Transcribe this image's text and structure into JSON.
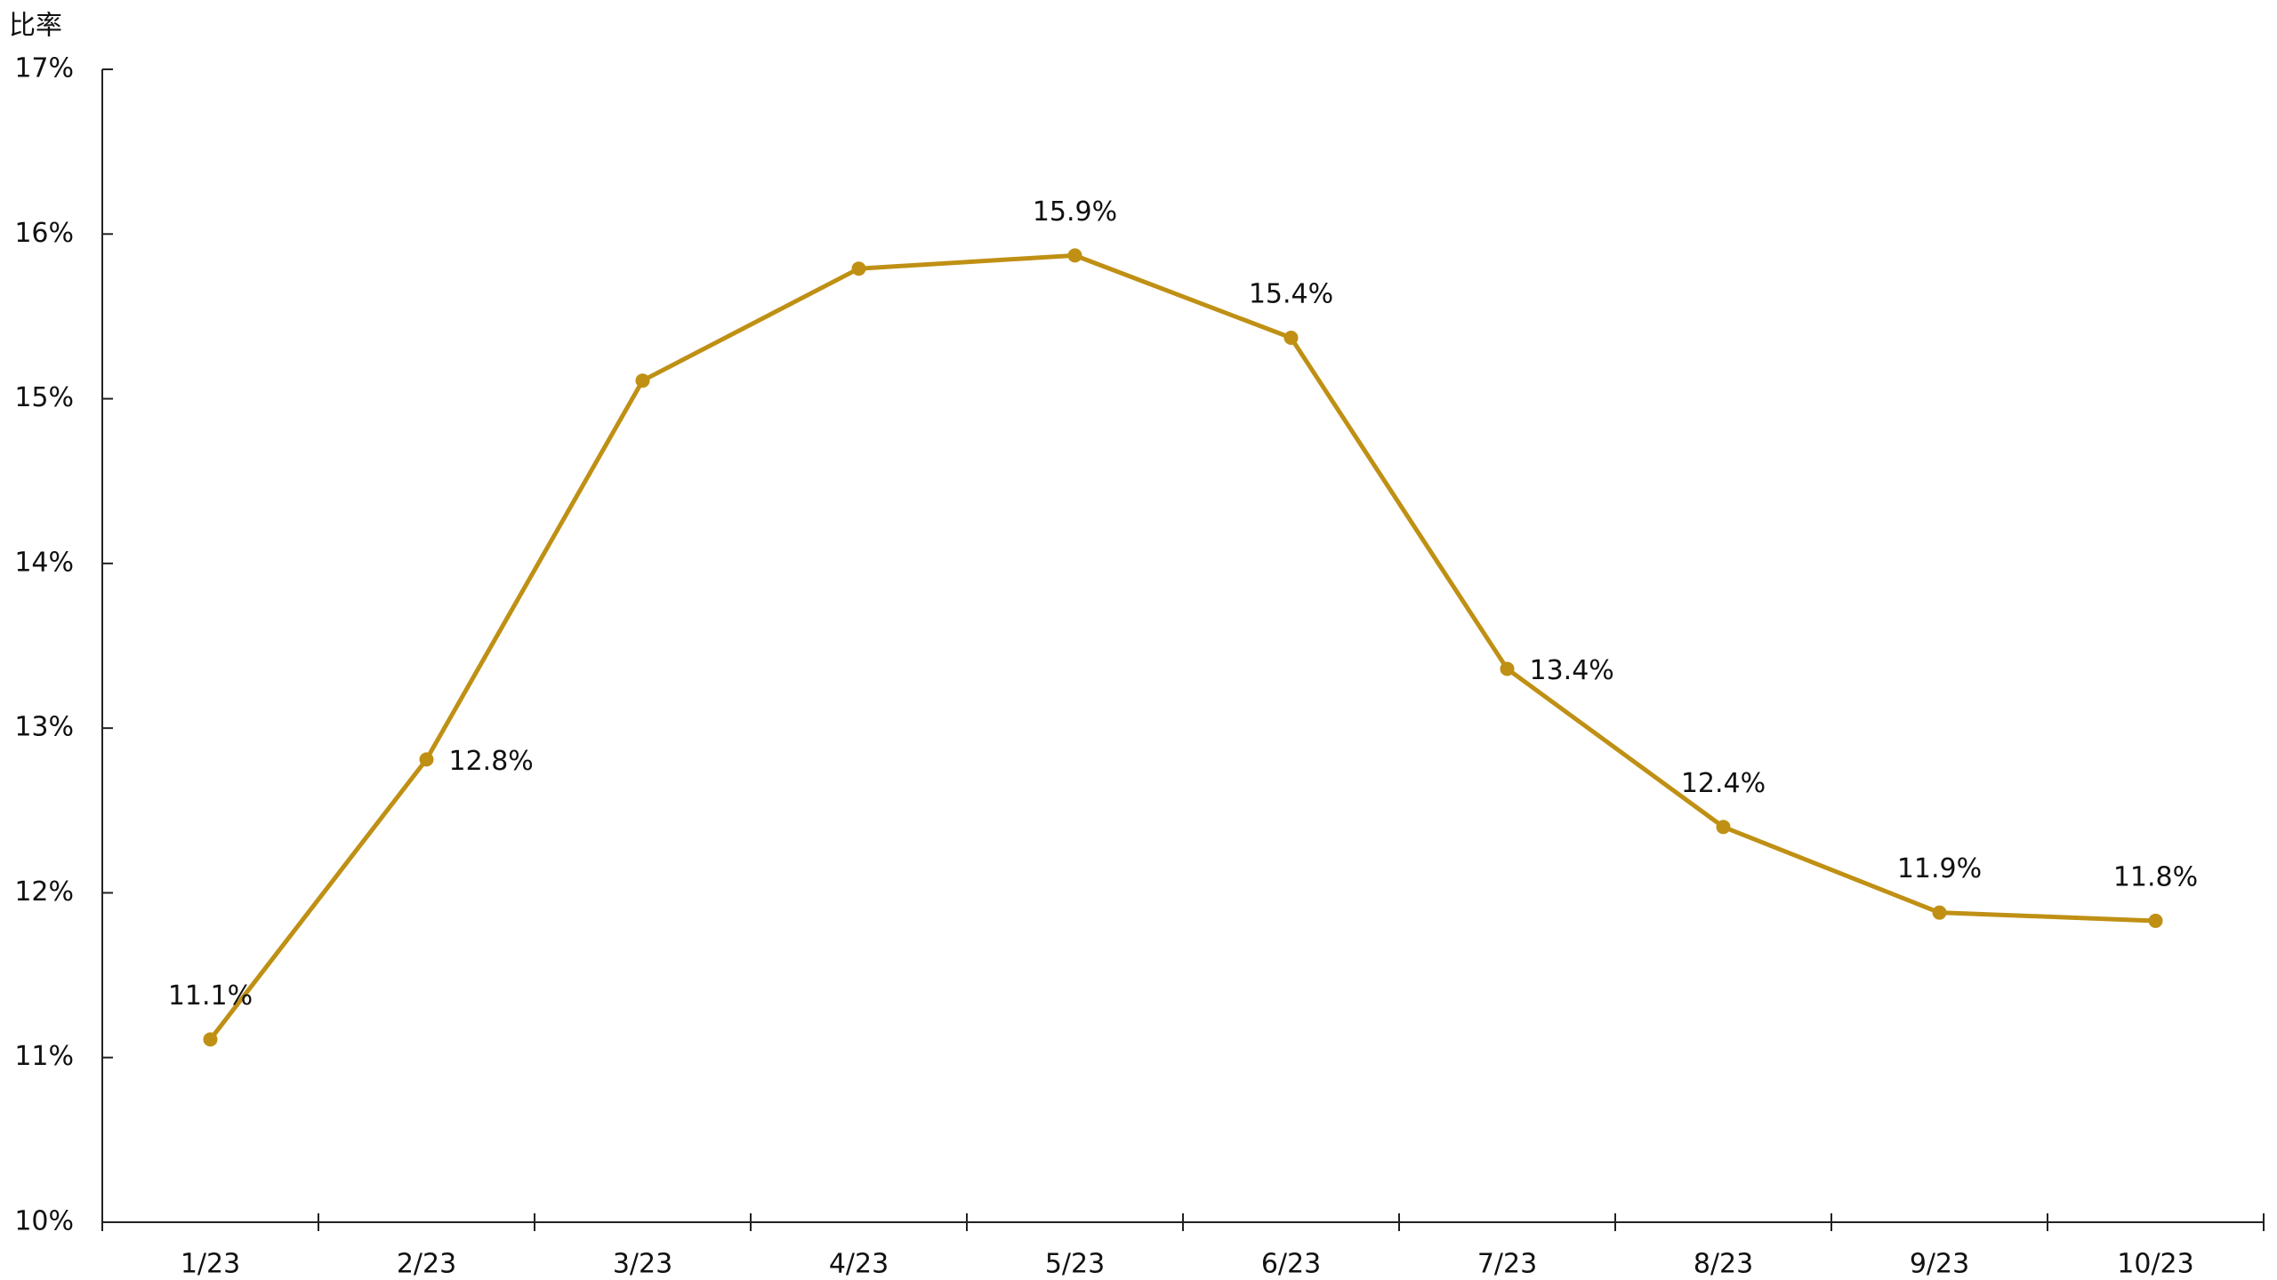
{
  "chart_data": {
    "type": "line",
    "y_axis_label": "比率",
    "categories": [
      "1/23",
      "2/23",
      "3/23",
      "4/23",
      "5/23",
      "6/23",
      "7/23",
      "8/23",
      "9/23",
      "10/23"
    ],
    "series": [
      {
        "color": "#bf9014",
        "values": [
          11.11,
          12.81,
          15.11,
          15.79,
          15.87,
          15.37,
          13.36,
          12.4,
          11.88,
          11.83
        ],
        "value_labels": [
          "11.1%",
          "12.8%",
          null,
          null,
          "15.9%",
          "15.4%",
          "13.4%",
          "12.4%",
          "11.9%",
          "11.8%"
        ]
      }
    ],
    "ylim": [
      10,
      17
    ],
    "yticks": [
      {
        "value": 10,
        "label": "10%"
      },
      {
        "value": 11,
        "label": "11%"
      },
      {
        "value": 12,
        "label": "12%"
      },
      {
        "value": 13,
        "label": "13%"
      },
      {
        "value": 14,
        "label": "14%"
      },
      {
        "value": 15,
        "label": "15%"
      },
      {
        "value": 16,
        "label": "16%"
      },
      {
        "value": 17,
        "label": "17%"
      }
    ],
    "grid": false
  }
}
